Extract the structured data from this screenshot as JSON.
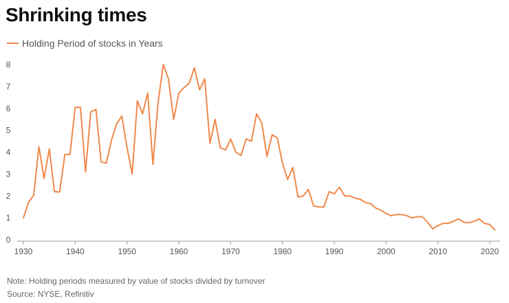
{
  "colors": {
    "series": "#f0884a",
    "axis": "#999999",
    "title": "#111111"
  },
  "chart_data": {
    "type": "line",
    "title": "Shrinking times",
    "xlabel": "",
    "ylabel": "",
    "xlim": [
      1930,
      2021
    ],
    "ylim": [
      0,
      8
    ],
    "grid": false,
    "legend_position": "top-left",
    "x_ticks": [
      "1930",
      "1940",
      "1950",
      "1960",
      "1970",
      "1980",
      "1990",
      "2000",
      "2010",
      "2020"
    ],
    "y_ticks": [
      "0",
      "1",
      "2",
      "3",
      "4",
      "5",
      "6",
      "7",
      "8"
    ],
    "series": [
      {
        "name": "Holding Period of stocks in Years",
        "color": "#f0884a",
        "x": [
          1930,
          1931,
          1932,
          1933,
          1934,
          1935,
          1936,
          1937,
          1938,
          1939,
          1940,
          1941,
          1942,
          1943,
          1944,
          1945,
          1946,
          1947,
          1948,
          1949,
          1950,
          1951,
          1952,
          1953,
          1954,
          1955,
          1956,
          1957,
          1958,
          1959,
          1960,
          1961,
          1962,
          1963,
          1964,
          1965,
          1966,
          1967,
          1968,
          1969,
          1970,
          1971,
          1972,
          1973,
          1974,
          1975,
          1976,
          1977,
          1978,
          1979,
          1980,
          1981,
          1982,
          1983,
          1984,
          1985,
          1986,
          1987,
          1988,
          1989,
          1990,
          1991,
          1992,
          1993,
          1994,
          1995,
          1996,
          1997,
          1998,
          1999,
          2000,
          2001,
          2002,
          2003,
          2004,
          2005,
          2006,
          2007,
          2008,
          2009,
          2010,
          2011,
          2012,
          2013,
          2014,
          2015,
          2016,
          2017,
          2018,
          2019,
          2020,
          2021
        ],
        "values": [
          1.0,
          1.7,
          2.05,
          4.25,
          2.8,
          4.15,
          2.2,
          2.18,
          3.9,
          3.9,
          6.05,
          6.05,
          3.1,
          5.85,
          5.95,
          3.55,
          3.5,
          4.55,
          5.3,
          5.65,
          4.2,
          3.0,
          6.35,
          5.75,
          6.7,
          3.45,
          6.3,
          8.0,
          7.35,
          5.5,
          6.7,
          6.95,
          7.15,
          7.85,
          6.85,
          7.35,
          4.4,
          5.5,
          4.2,
          4.1,
          4.6,
          4.0,
          3.85,
          4.6,
          4.5,
          5.75,
          5.35,
          3.8,
          4.8,
          4.65,
          3.5,
          2.75,
          3.3,
          1.95,
          2.0,
          2.3,
          1.55,
          1.5,
          1.5,
          2.2,
          2.1,
          2.4,
          2.0,
          2.0,
          1.9,
          1.85,
          1.7,
          1.65,
          1.45,
          1.35,
          1.2,
          1.1,
          1.15,
          1.15,
          1.1,
          1.0,
          1.05,
          1.05,
          0.8,
          0.5,
          0.65,
          0.75,
          0.75,
          0.85,
          0.95,
          0.8,
          0.78,
          0.85,
          0.95,
          0.75,
          0.7,
          0.45
        ]
      }
    ],
    "note": "Note: Holding periods measured by value of stocks divided by turnover",
    "source": "Source: NYSE, Refinitiv"
  }
}
